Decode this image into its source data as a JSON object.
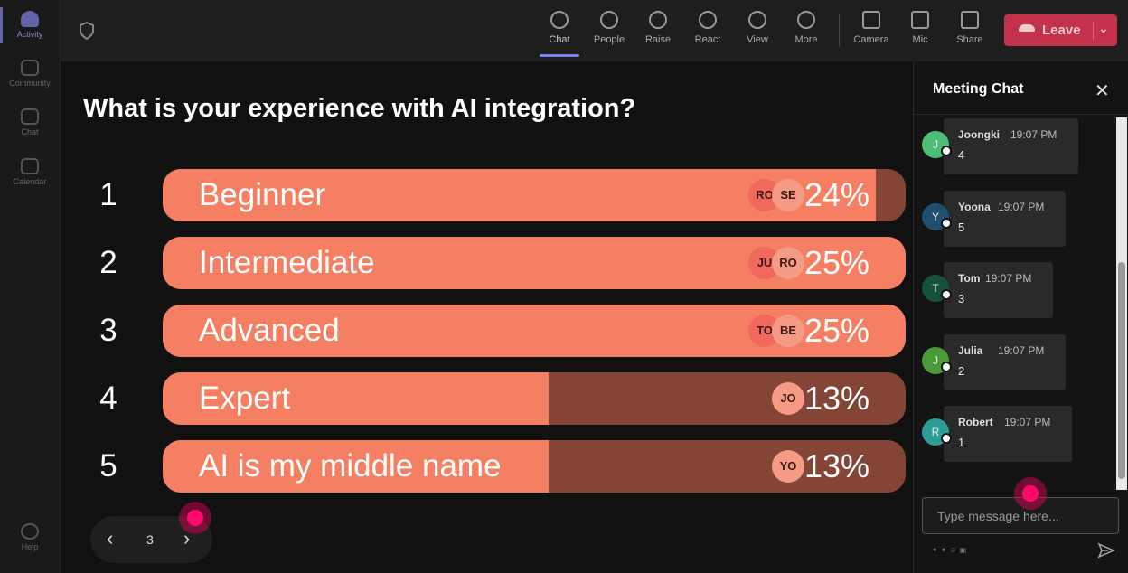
{
  "sidebar": {
    "items": [
      "Activity",
      "Community",
      "Chat",
      "Calendar"
    ],
    "help": "Help"
  },
  "toolbar": {
    "items": [
      "Chat",
      "People",
      "Raise",
      "React",
      "View",
      "More",
      "Camera",
      "Mic",
      "Share"
    ],
    "leave": "Leave"
  },
  "poll": {
    "question": "What is your experience with AI integration?",
    "options": [
      {
        "number": 1,
        "label": "Beginner",
        "percent": 24,
        "percent_label": "24%",
        "voters": [
          "RO",
          "SE"
        ]
      },
      {
        "number": 2,
        "label": "Intermediate",
        "percent": 25,
        "percent_label": "25%",
        "voters": [
          "JU",
          "RO"
        ]
      },
      {
        "number": 3,
        "label": "Advanced",
        "percent": 25,
        "percent_label": "25%",
        "voters": [
          "TO",
          "BE"
        ]
      },
      {
        "number": 4,
        "label": "Expert",
        "percent": 13,
        "percent_label": "13%",
        "voters": [
          "JO"
        ]
      },
      {
        "number": 5,
        "label": "AI is my middle name",
        "percent": 13,
        "percent_label": "13%",
        "voters": [
          "YO"
        ]
      }
    ],
    "page": 3
  },
  "chat": {
    "title": "Meeting Chat",
    "messages": [
      {
        "initial": "J",
        "name": "Joongki",
        "time": "19:07 PM",
        "text": "4",
        "color": "#4cbf77"
      },
      {
        "initial": "Y",
        "name": "Yoona",
        "time": "19:07 PM",
        "text": "5",
        "color": "#1f4e6e"
      },
      {
        "initial": "T",
        "name": "Tom",
        "time": "19:07 PM",
        "text": "3",
        "color": "#16523a"
      },
      {
        "initial": "J",
        "name": "Julia",
        "time": "19:07 PM",
        "text": "2",
        "color": "#4a9a38"
      },
      {
        "initial": "R",
        "name": "Robert",
        "time": "19:07 PM",
        "text": "1",
        "color": "#2b9d96"
      }
    ],
    "placeholder": "Type message here..."
  }
}
